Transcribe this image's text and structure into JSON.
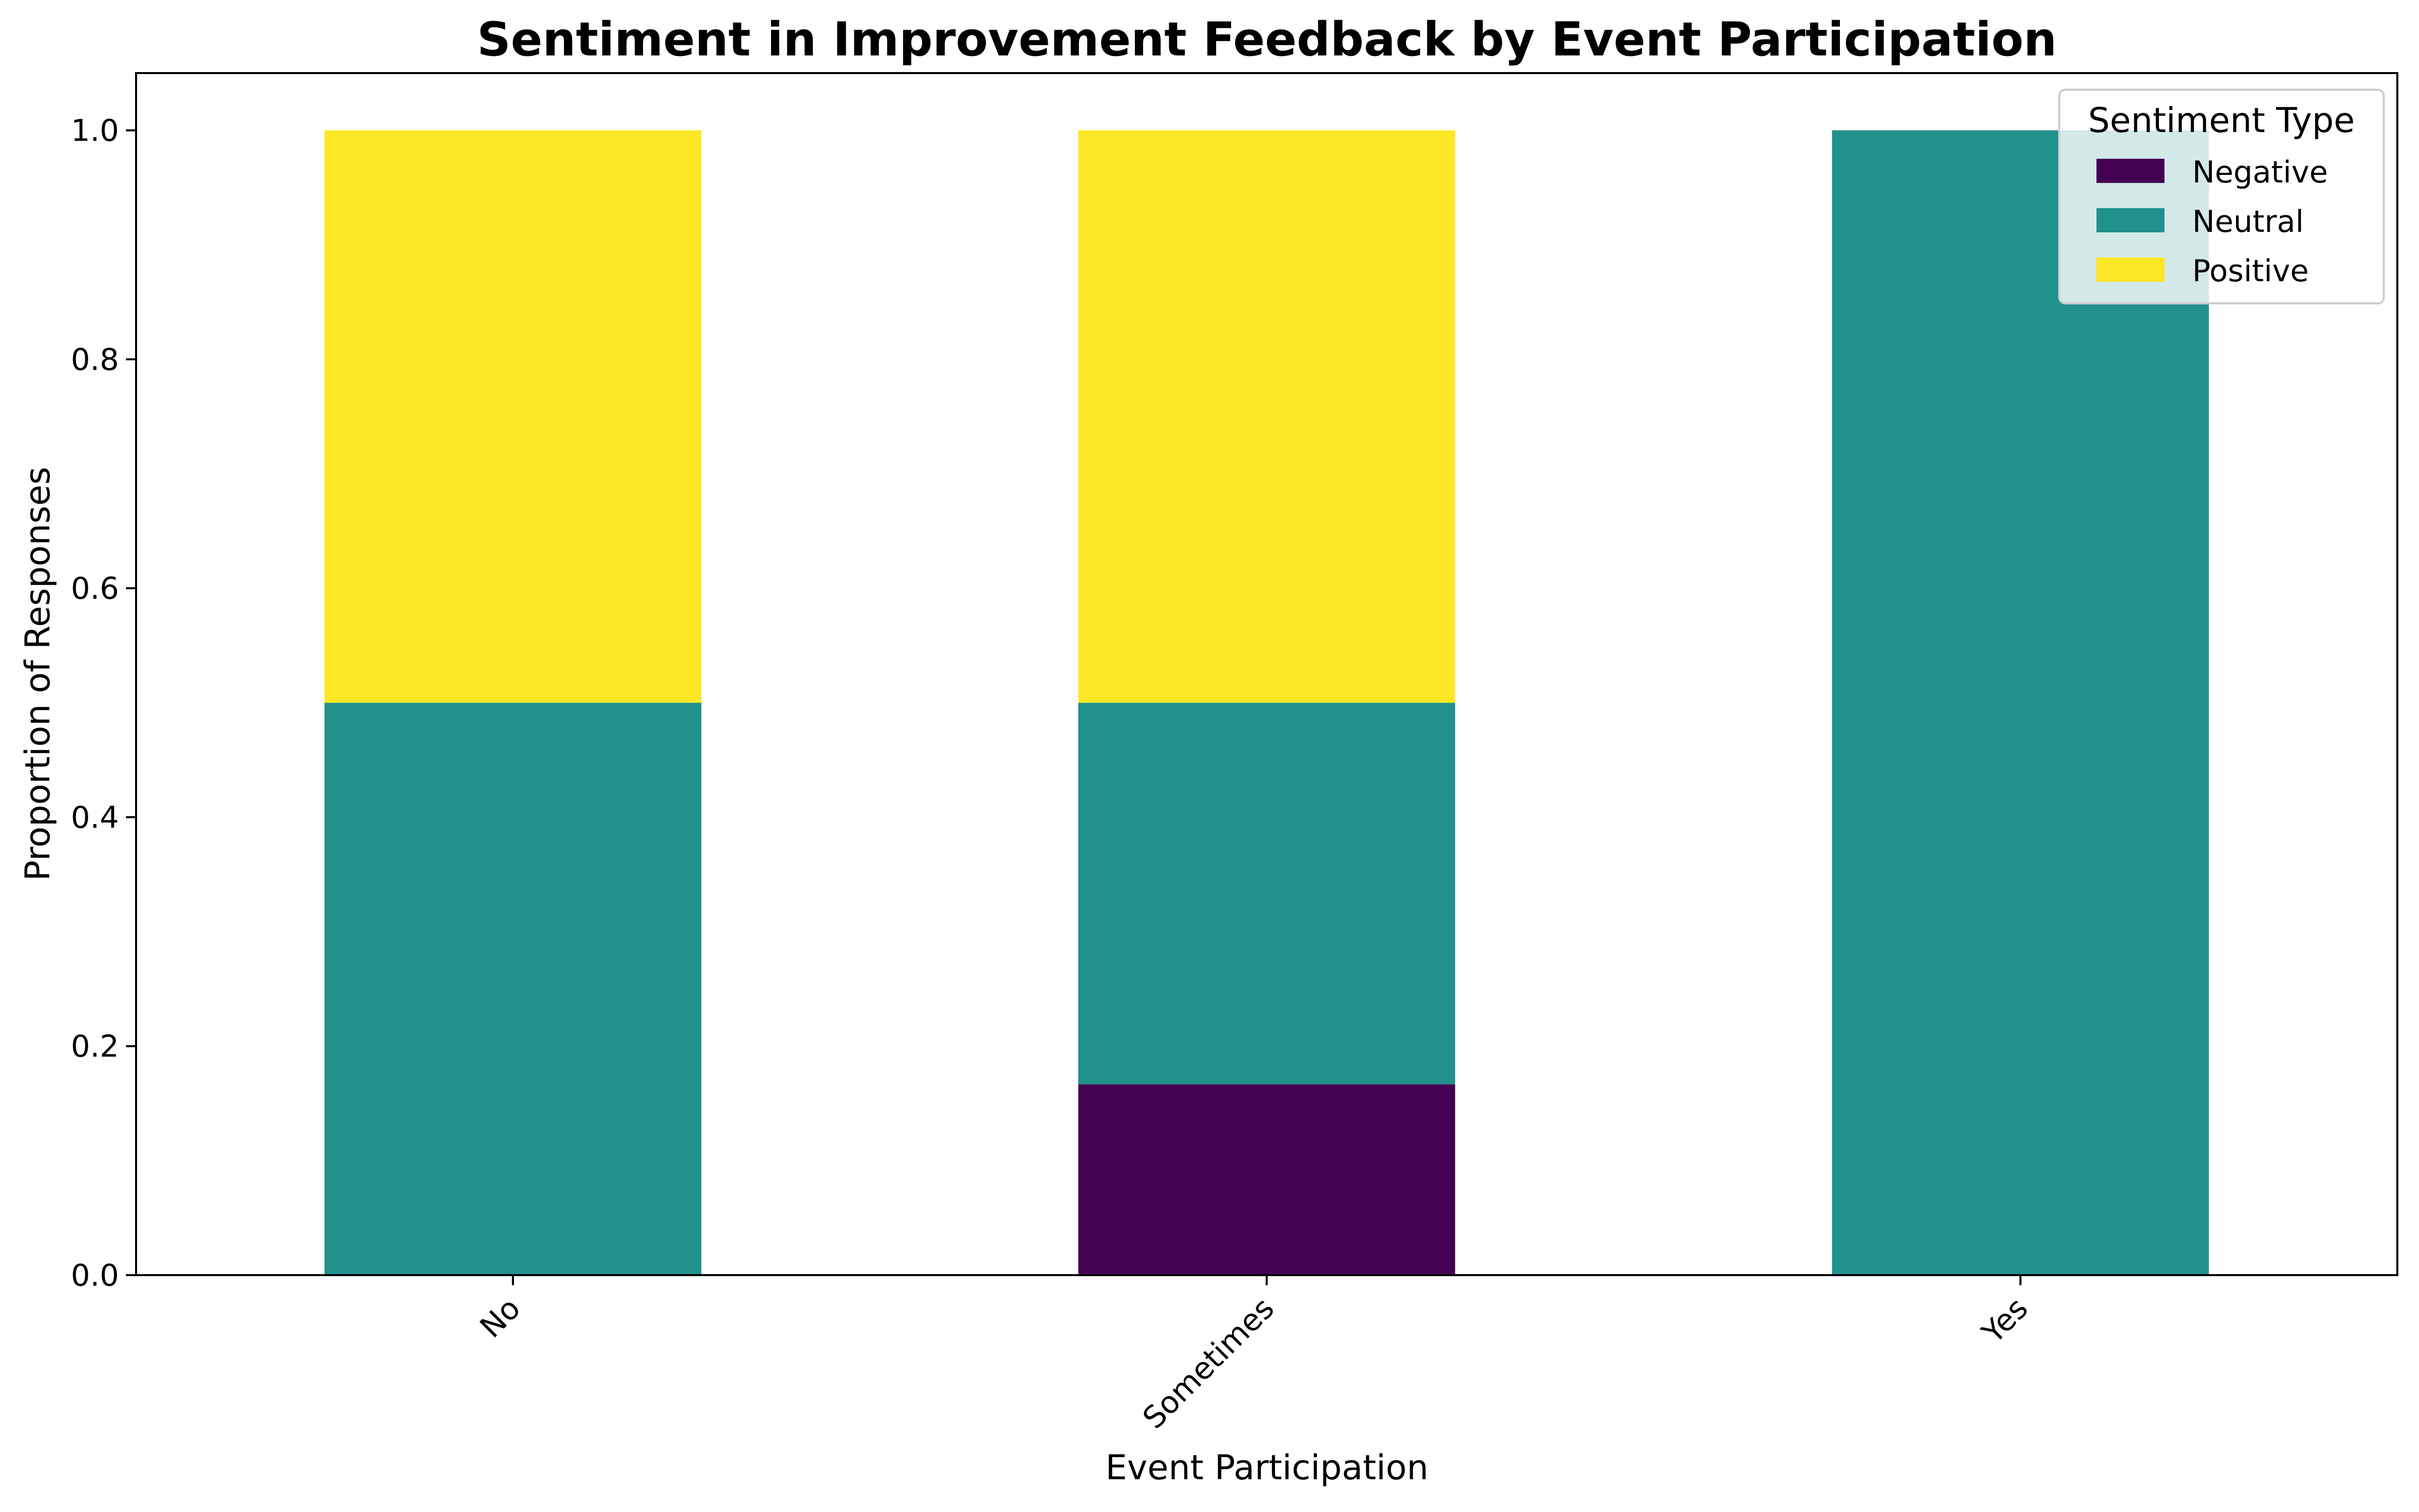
{
  "chart_data": {
    "type": "bar",
    "stacked": true,
    "title": "Sentiment in Improvement Feedback by Event Participation",
    "xlabel": "Event Participation",
    "ylabel": "Proportion of Responses",
    "categories": [
      "No",
      "Sometimes",
      "Yes"
    ],
    "series": [
      {
        "name": "Negative",
        "color": "#440154",
        "values": [
          0.0,
          0.1667,
          0.0
        ]
      },
      {
        "name": "Neutral",
        "color": "#21918c",
        "values": [
          0.5,
          0.3333,
          1.0
        ]
      },
      {
        "name": "Positive",
        "color": "#fde725",
        "values": [
          0.5,
          0.5,
          0.0
        ]
      }
    ],
    "ylim": [
      0,
      1.05
    ],
    "yticks": [
      "0.0",
      "0.2",
      "0.4",
      "0.6",
      "0.8",
      "1.0"
    ],
    "legend": {
      "title": "Sentiment Type",
      "placement": "top-right"
    },
    "grid": false
  }
}
